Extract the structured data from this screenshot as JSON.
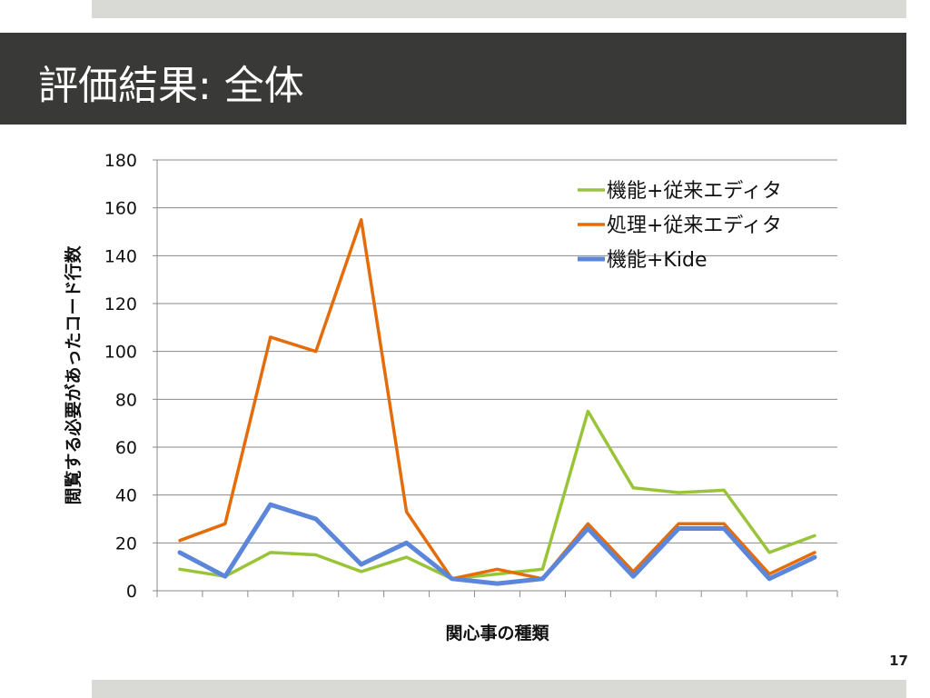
{
  "slide": {
    "title": "評価結果: 全体",
    "page_number": "17"
  },
  "colors": {
    "title_bar": "#393937",
    "accent_strip": "#d9dad5",
    "series_green": "#99c43a",
    "series_orange": "#e46c0a",
    "series_blue": "#5b86d9",
    "grid": "#898989"
  },
  "chart_data": {
    "type": "line",
    "title": "",
    "xlabel": "関心事の種類",
    "ylabel": "閲覧する必要があったコード行数",
    "ylim": [
      0,
      180
    ],
    "yticks": [
      "0",
      "20",
      "40",
      "60",
      "80",
      "100",
      "120",
      "140",
      "160",
      "180"
    ],
    "grid": true,
    "legend_position": "top-right",
    "categories": [
      "",
      "",
      "",
      "",
      "",
      "",
      "",
      "",
      "",
      "",
      "",
      "",
      "",
      "",
      ""
    ],
    "series": [
      {
        "name": "機能+従来エディタ",
        "color": "#99c43a",
        "values": [
          9,
          6,
          16,
          15,
          8,
          14,
          5,
          7,
          9,
          75,
          43,
          41,
          42,
          16,
          23
        ]
      },
      {
        "name": "処理+従来エディタ",
        "color": "#e46c0a",
        "values": [
          21,
          28,
          106,
          100,
          155,
          33,
          5,
          9,
          5,
          28,
          8,
          28,
          28,
          7,
          16
        ]
      },
      {
        "name": "機能+Kide",
        "color": "#5b86d9",
        "values": [
          16,
          6,
          36,
          30,
          11,
          20,
          5,
          3,
          5,
          26,
          6,
          26,
          26,
          5,
          14
        ]
      }
    ]
  }
}
